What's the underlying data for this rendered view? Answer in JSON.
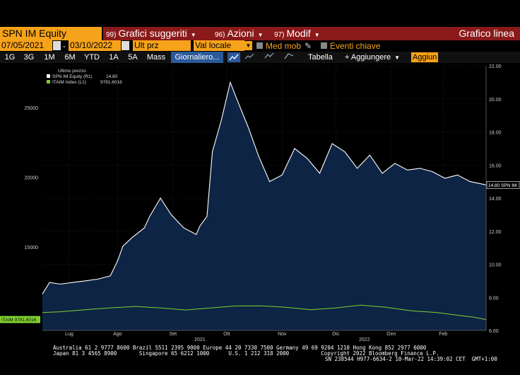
{
  "header": {
    "ticker": "SPN IM Equity",
    "menus": [
      {
        "num": "99)",
        "label": "Grafici suggeriti"
      },
      {
        "num": "96)",
        "label": "Azioni"
      },
      {
        "num": "97)",
        "label": "Modif"
      }
    ],
    "title": "Grafico linea"
  },
  "toolbar": {
    "date_from": "07/05/2021",
    "date_to": "03/10/2022",
    "price_field": "Ult prz",
    "currency_field": "Val locale",
    "moving_avg_label": "Med mob",
    "key_events_label": "Eventi chiave"
  },
  "ranges": [
    "1G",
    "3G",
    "1M",
    "6M",
    "YTD",
    "1A",
    "5A",
    "Mass",
    "Giornaliero..."
  ],
  "tools": {
    "table_label": "Tabella",
    "add_label": "+ Aggiungere",
    "update_label": "Aggiun"
  },
  "chart_data": {
    "type": "area",
    "legend_title": "Ultimo prezzo",
    "series": [
      {
        "name": "SPN IM Equity  (R1)",
        "last": "14.80",
        "color": "#ffffff",
        "axis": "right",
        "x": [
          "2021-07-05",
          "2021-07-09",
          "2021-07-15",
          "2021-07-22",
          "2021-07-29",
          "2021-08-05",
          "2021-08-12",
          "2021-08-16",
          "2021-08-19",
          "2021-08-24",
          "2021-08-31",
          "2021-09-03",
          "2021-09-09",
          "2021-09-15",
          "2021-09-22",
          "2021-09-29",
          "2021-10-01",
          "2021-10-05",
          "2021-10-08",
          "2021-10-13",
          "2021-10-18",
          "2021-10-22",
          "2021-10-28",
          "2021-11-03",
          "2021-11-09",
          "2021-11-16",
          "2021-11-23",
          "2021-11-30",
          "2021-12-07",
          "2021-12-14",
          "2021-12-21",
          "2021-12-28",
          "2022-01-04",
          "2022-01-11",
          "2022-01-18",
          "2022-01-25",
          "2022-02-01",
          "2022-02-08",
          "2022-02-15",
          "2022-02-22",
          "2022-03-01",
          "2022-03-10"
        ],
        "y": [
          8.2,
          8.9,
          8.8,
          8.9,
          9.0,
          9.1,
          9.3,
          10.2,
          11.1,
          11.6,
          12.2,
          12.9,
          14.0,
          13.0,
          12.2,
          11.8,
          12.3,
          12.9,
          16.8,
          18.7,
          21.0,
          19.9,
          18.3,
          16.5,
          15.0,
          15.4,
          17.0,
          16.4,
          15.5,
          17.3,
          16.8,
          15.8,
          16.6,
          15.5,
          16.1,
          15.7,
          15.8,
          15.6,
          15.2,
          15.4,
          15.0,
          14.8
        ]
      },
      {
        "name": "ITAIM Index  (L1)",
        "last": "9781.6016",
        "color": "#7fcf2f",
        "axis": "left",
        "x": [
          "2021-07-05",
          "2021-07-15",
          "2021-07-29",
          "2021-08-12",
          "2021-08-26",
          "2021-09-09",
          "2021-09-23",
          "2021-10-07",
          "2021-10-21",
          "2021-11-04",
          "2021-11-18",
          "2021-12-02",
          "2021-12-16",
          "2021-12-30",
          "2022-01-13",
          "2022-01-27",
          "2022-02-10",
          "2022-02-24",
          "2022-03-03",
          "2022-03-10"
        ],
        "y": [
          10280,
          10340,
          10490,
          10620,
          10720,
          10610,
          10470,
          10610,
          10760,
          10770,
          10660,
          10490,
          10610,
          10820,
          10660,
          10410,
          10290,
          10060,
          9950,
          9781.6016
        ]
      }
    ],
    "left_axis": {
      "min": 9000,
      "max": 28000,
      "ticks": [
        "15000",
        "20000",
        "25000"
      ]
    },
    "right_axis": {
      "min": 6,
      "max": 22,
      "ticks": [
        "6.00",
        "8.00",
        "10.00",
        "12.00",
        "14.00",
        "16.00",
        "18.00",
        "20.00",
        "22.00"
      ]
    },
    "x_range": [
      "2021-07-05",
      "2022-03-10"
    ],
    "month_labels": [
      {
        "label": "Lug",
        "date": "2021-07-20"
      },
      {
        "label": "Ago",
        "date": "2021-08-16"
      },
      {
        "label": "Set",
        "date": "2021-09-16"
      },
      {
        "label": "Ott",
        "date": "2021-10-16"
      },
      {
        "label": "Nov",
        "date": "2021-11-16"
      },
      {
        "label": "Dic",
        "date": "2021-12-16"
      },
      {
        "label": "Gen",
        "date": "2022-01-16"
      },
      {
        "label": "Feb",
        "date": "2022-02-14"
      }
    ],
    "year_labels": [
      {
        "label": "2021",
        "date": "2021-10-01"
      },
      {
        "label": "2022",
        "date": "2022-01-01"
      }
    ],
    "right_tag": "14.80 SPN IM",
    "left_tag": "ITAIM 9781.6016"
  },
  "footer": {
    "line1": "Australia 61 2 9777 8600 Brazil 5511 2395 9000 Europe 44 20 7330 7500 Germany 49 69 9204 1210 Hong Kong 852 2977 6000",
    "line2": "Japan 81 3 4565 8900       Singapore 65 6212 1000      U.S. 1 212 318 2000          Copyright 2022 Bloomberg Finance L.P.",
    "line3": "SN 238544 H977-6634-2 10-Mar-22 14:39:02 CET  GMT+1:00"
  },
  "colors": {
    "accent": "#f6a21a",
    "menubar": "#8a1a1a",
    "area": "#0d2444",
    "series2": "#7fcf2f"
  }
}
